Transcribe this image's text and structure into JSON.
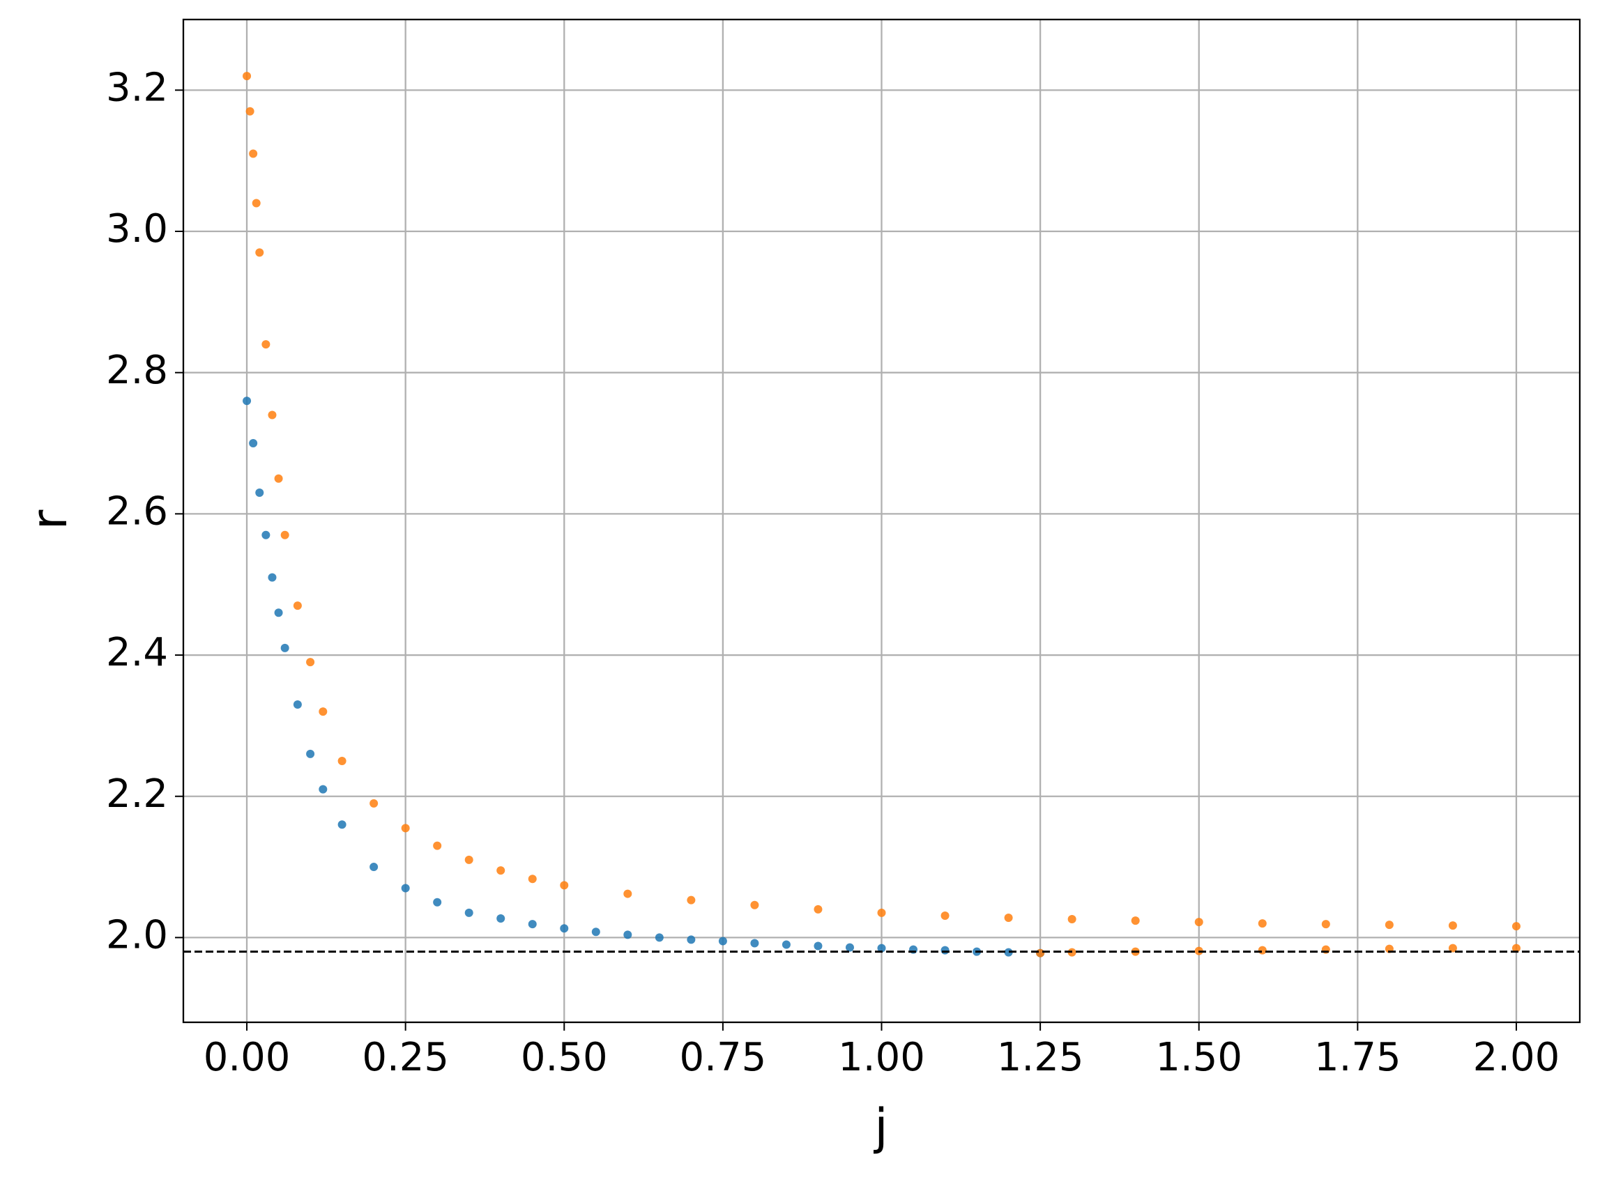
{
  "chart_data": {
    "type": "scatter",
    "x_label": "j",
    "y_label": "r",
    "xlim": [
      -0.1,
      2.1
    ],
    "ylim": [
      1.88,
      3.3
    ],
    "xticks": [
      {
        "value": 0,
        "label": "0.00"
      },
      0.25,
      {
        "value": 0.5,
        "label": "0.50"
      },
      0.75,
      {
        "value": 1,
        "label": "1.00"
      },
      1.25,
      {
        "value": 1.5,
        "label": "1.50"
      },
      1.75,
      {
        "value": 2,
        "label": "2.00"
      }
    ],
    "yticks": [
      {
        "value": 2,
        "label": "2.0"
      },
      2.2,
      2.4,
      2.6,
      2.8,
      {
        "value": 3,
        "label": "3.0"
      },
      3.2
    ],
    "grid": true,
    "hline": {
      "y": 1.98,
      "color": "#000000",
      "style": "dashed"
    },
    "series": [
      {
        "color": "#1f77b4",
        "x": [
          0,
          0.01,
          0.02,
          0.03,
          0.04,
          0.05,
          0.06,
          0.08,
          0.1,
          0.12,
          0.15,
          0.2,
          0.25,
          0.3,
          0.35,
          0.4,
          0.45,
          0.5,
          0.55,
          0.6,
          0.65,
          0.7,
          0.75,
          0.8,
          0.85,
          0.9,
          0.95,
          1.0,
          1.05,
          1.1,
          1.15,
          1.2,
          1.25
        ],
        "values": [
          2.76,
          2.7,
          2.63,
          2.57,
          2.51,
          2.46,
          2.41,
          2.33,
          2.26,
          2.21,
          2.16,
          2.1,
          2.07,
          2.05,
          2.035,
          2.027,
          2.019,
          2.013,
          2.008,
          2.004,
          2.0,
          1.997,
          1.995,
          1.992,
          1.99,
          1.988,
          1.986,
          1.985,
          1.983,
          1.982,
          1.98,
          1.979,
          1.978
        ]
      },
      {
        "color": "#ff7f0e",
        "x": [
          0,
          0.005,
          0.01,
          0.015,
          0.02,
          0.03,
          0.04,
          0.05,
          0.06,
          0.08,
          0.1,
          0.12,
          0.15,
          0.2,
          0.25,
          0.3,
          0.35,
          0.4,
          0.45,
          0.5,
          0.6,
          0.7,
          0.8,
          0.9,
          1.0,
          1.1,
          1.2,
          1.3,
          1.4,
          1.5,
          1.6,
          1.7,
          1.8,
          1.9,
          2.0
        ],
        "values": [
          3.22,
          3.17,
          3.11,
          3.04,
          2.97,
          2.84,
          2.74,
          2.65,
          2.57,
          2.47,
          2.39,
          2.32,
          2.25,
          2.19,
          2.155,
          2.13,
          2.11,
          2.095,
          2.083,
          2.074,
          2.062,
          2.053,
          2.046,
          2.04,
          2.035,
          2.031,
          2.028,
          2.026,
          2.024,
          2.022,
          2.02,
          2.019,
          2.018,
          2.017,
          2.016
        ]
      },
      {
        "color": "#ff7f0e",
        "x": [
          1.25,
          1.3,
          1.4,
          1.5,
          1.6,
          1.7,
          1.8,
          1.9,
          2.0
        ],
        "values": [
          1.978,
          1.979,
          1.98,
          1.981,
          1.982,
          1.983,
          1.984,
          1.985,
          1.985
        ]
      }
    ]
  }
}
